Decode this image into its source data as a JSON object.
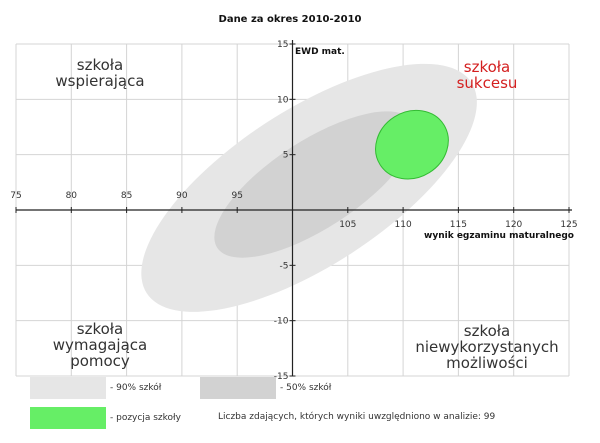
{
  "chart_data": {
    "type": "scatter",
    "title": "Dane za okres 2010-2010",
    "xlabel": "wynik egzaminu maturalnego",
    "ylabel": "EWD mat.",
    "xlim": [
      75,
      125
    ],
    "ylim": [
      -15,
      15
    ],
    "x_ticks": [
      75,
      80,
      85,
      90,
      95,
      105,
      110,
      115,
      120,
      125
    ],
    "y_ticks": [
      15,
      10,
      5,
      -5,
      -10,
      -15
    ],
    "grid": true,
    "regions": [
      {
        "name": "- 90% szkół",
        "center": [
          101.5,
          2.0
        ],
        "semi_major": 17.5,
        "semi_minor": 3.2,
        "angle_deg": 33,
        "color": "#e6e6e6"
      },
      {
        "name": "- 50% szkół",
        "center": [
          102.0,
          2.3
        ],
        "semi_major": 10.5,
        "semi_minor": 1.8,
        "angle_deg": 33,
        "color": "#d2d2d2"
      },
      {
        "name": "- pozycja szkoły",
        "center": [
          110.8,
          5.9
        ],
        "semi_major": 3.4,
        "semi_minor": 1.35,
        "angle_deg": 32,
        "color": "#66ee66"
      }
    ],
    "quadrant_labels": {
      "top_left": [
        "szkoła",
        "wspierająca"
      ],
      "top_right": [
        "szkoła",
        "sukcesu"
      ],
      "bottom_left": [
        "szkoła",
        "wymagająca",
        "pomocy"
      ],
      "bottom_right": [
        "szkoła",
        "niewykorzystanych",
        "możliwości"
      ]
    },
    "colors": {
      "axis": "#222222",
      "grid": "#d4d4d4",
      "success_label": "#d42020",
      "quadrant_label": "#333333",
      "school_border": "#33bb33"
    }
  },
  "legend": {
    "item_90": "- 90% szkół",
    "item_50": "- 50% szkół",
    "item_school": "- pozycja szkoły",
    "note": "Liczba zdających, których wyniki uwzględniono w analizie: 99",
    "color_90": "#e6e6e6",
    "color_50": "#d2d2d2",
    "color_school": "#66ee66"
  }
}
